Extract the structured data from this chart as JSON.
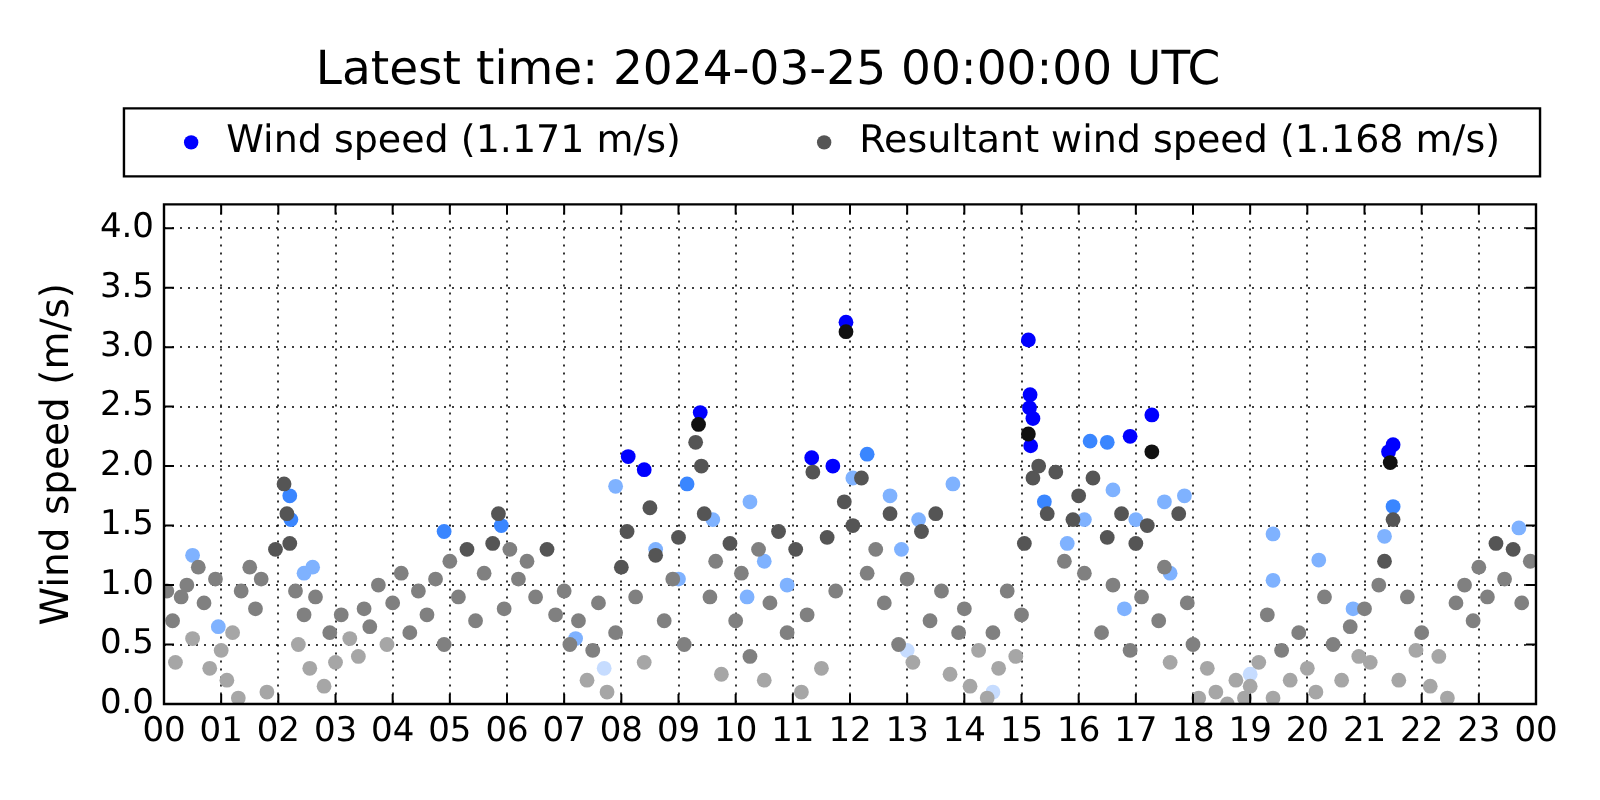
{
  "chart_data": {
    "type": "scatter",
    "title": "Latest time: 2024-03-25 00:00:00 UTC",
    "ylabel": "Wind speed (m/s)",
    "legend": "top",
    "grid": true,
    "marker": "circle",
    "xlim": [
      0,
      24
    ],
    "xticks": [
      {
        "value": 0,
        "label": "00"
      },
      {
        "value": 1,
        "label": "01"
      },
      {
        "value": 2,
        "label": "02"
      },
      {
        "value": 3,
        "label": "03"
      },
      {
        "value": 4,
        "label": "04"
      },
      {
        "value": 5,
        "label": "05"
      },
      {
        "value": 6,
        "label": "06"
      },
      {
        "value": 7,
        "label": "07"
      },
      {
        "value": 8,
        "label": "08"
      },
      {
        "value": 9,
        "label": "09"
      },
      10,
      11,
      12,
      13,
      14,
      15,
      16,
      17,
      18,
      19,
      20,
      21,
      22,
      23,
      {
        "value": 24,
        "label": "00"
      }
    ],
    "ylim": [
      0,
      4.2
    ],
    "yticks": [
      {
        "value": 0,
        "label": "0.0"
      },
      0.5,
      {
        "value": 1,
        "label": "1.0"
      },
      1.5,
      {
        "value": 2,
        "label": "2.0"
      },
      2.5,
      {
        "value": 3,
        "label": "3.0"
      },
      3.5,
      {
        "value": 4,
        "label": "4.0"
      }
    ],
    "series": [
      {
        "name": "Wind speed (1.171 m/s)",
        "color": "#0000ff",
        "x": [
          0.5,
          0.95,
          2.2,
          2.22,
          2.45,
          2.6,
          4.9,
          5.9,
          7.2,
          7.7,
          7.9,
          8.12,
          8.4,
          8.6,
          9.0,
          9.15,
          9.38,
          9.6,
          10.25,
          10.2,
          10.5,
          10.9,
          11.33,
          11.7,
          11.93,
          12.05,
          12.3,
          12.7,
          12.9,
          13.0,
          13.2,
          13.8,
          14.5,
          15.12,
          15.15,
          15.14,
          15.2,
          15.16,
          15.4,
          15.8,
          16.1,
          16.2,
          16.5,
          16.6,
          16.8,
          16.9,
          17.0,
          17.28,
          17.5,
          17.6,
          17.85,
          19.0,
          19.4,
          19.4,
          20.2,
          20.8,
          21.42,
          21.5,
          21.5,
          21.35,
          23.7
        ],
        "values": [
          1.25,
          0.65,
          1.75,
          1.55,
          1.1,
          1.15,
          1.45,
          1.5,
          0.55,
          0.3,
          1.83,
          2.08,
          1.97,
          1.3,
          1.05,
          1.85,
          2.45,
          1.55,
          1.7,
          0.9,
          1.2,
          1.0,
          2.07,
          2.0,
          3.21,
          1.9,
          2.1,
          1.75,
          1.3,
          0.45,
          1.55,
          1.85,
          0.1,
          3.06,
          2.6,
          2.49,
          2.4,
          2.17,
          1.7,
          1.35,
          1.55,
          2.21,
          2.2,
          1.8,
          0.8,
          2.25,
          1.55,
          2.43,
          1.7,
          1.1,
          1.75,
          0.25,
          1.43,
          1.04,
          1.21,
          0.8,
          2.12,
          2.18,
          1.66,
          1.41,
          1.48
        ],
        "colors": [
          "#7fb2ff",
          "#7fb2ff",
          "#3a86ff",
          "#3a86ff",
          "#7fb2ff",
          "#7fb2ff",
          "#3a86ff",
          "#3a86ff",
          "#7fb2ff",
          "#c6dcff",
          "#7fb2ff",
          "#0000ff",
          "#0000ff",
          "#7fb2ff",
          "#7fb2ff",
          "#3a86ff",
          "#0000ff",
          "#7fb2ff",
          "#7fb2ff",
          "#7fb2ff",
          "#7fb2ff",
          "#7fb2ff",
          "#0000ff",
          "#0000ff",
          "#0000ff",
          "#7fb2ff",
          "#3a86ff",
          "#7fb2ff",
          "#7fb2ff",
          "#c6dcff",
          "#7fb2ff",
          "#7fb2ff",
          "#c6dcff",
          "#0000ff",
          "#0000ff",
          "#0000ff",
          "#0000ff",
          "#0000ff",
          "#3a86ff",
          "#7fb2ff",
          "#7fb2ff",
          "#3a86ff",
          "#3a86ff",
          "#7fb2ff",
          "#7fb2ff",
          "#0000ff",
          "#7fb2ff",
          "#0000ff",
          "#7fb2ff",
          "#7fb2ff",
          "#7fb2ff",
          "#c6dcff",
          "#7fb2ff",
          "#7fb2ff",
          "#7fb2ff",
          "#7fb2ff",
          "#0000ff",
          "#0000ff",
          "#3a86ff",
          "#7fb2ff",
          "#7fb2ff"
        ]
      },
      {
        "name": "Resultant wind speed (1.168 m/s)",
        "color": "#555555",
        "x": [
          0.05,
          0.15,
          0.2,
          0.3,
          0.4,
          0.5,
          0.6,
          0.7,
          0.8,
          0.9,
          1.0,
          1.1,
          1.2,
          1.3,
          1.35,
          1.5,
          1.6,
          1.7,
          1.8,
          1.95,
          2.1,
          2.15,
          2.2,
          2.3,
          2.35,
          2.45,
          2.55,
          2.65,
          2.8,
          2.9,
          3.0,
          3.1,
          3.25,
          3.4,
          3.5,
          3.6,
          3.75,
          3.9,
          4.0,
          4.15,
          4.3,
          4.45,
          4.6,
          4.75,
          4.9,
          5.0,
          5.15,
          5.3,
          5.45,
          5.6,
          5.75,
          5.85,
          5.95,
          6.05,
          6.2,
          6.35,
          6.5,
          6.7,
          6.85,
          7.0,
          7.1,
          7.25,
          7.4,
          7.5,
          7.6,
          7.75,
          7.9,
          8.0,
          8.1,
          8.25,
          8.4,
          8.5,
          8.6,
          8.75,
          8.9,
          9.0,
          9.1,
          9.3,
          9.35,
          9.4,
          9.45,
          9.55,
          9.65,
          9.75,
          9.9,
          10.0,
          10.1,
          10.25,
          10.4,
          10.5,
          10.6,
          10.75,
          10.9,
          11.05,
          11.15,
          11.25,
          11.35,
          11.5,
          11.6,
          11.75,
          11.9,
          11.93,
          12.05,
          12.2,
          12.3,
          12.45,
          12.6,
          12.7,
          12.85,
          13.0,
          13.1,
          13.25,
          13.4,
          13.5,
          13.6,
          13.75,
          13.9,
          14.0,
          14.1,
          14.25,
          14.4,
          14.5,
          14.6,
          14.75,
          14.9,
          15.0,
          15.05,
          15.12,
          15.2,
          15.3,
          15.45,
          15.6,
          15.75,
          15.9,
          16.0,
          16.1,
          16.25,
          16.4,
          16.5,
          16.6,
          16.75,
          16.9,
          17.0,
          17.1,
          17.2,
          17.28,
          17.4,
          17.5,
          17.6,
          17.75,
          17.9,
          18.0,
          18.1,
          18.25,
          18.4,
          18.6,
          18.75,
          18.9,
          19.0,
          19.15,
          19.3,
          19.4,
          19.55,
          19.7,
          19.85,
          20.0,
          20.15,
          20.3,
          20.45,
          20.6,
          20.75,
          20.9,
          21.0,
          21.1,
          21.25,
          21.35,
          21.45,
          21.5,
          21.6,
          21.75,
          21.9,
          22.0,
          22.15,
          22.3,
          22.45,
          22.6,
          22.75,
          22.9,
          23.0,
          23.15,
          23.3,
          23.45,
          23.6,
          23.75,
          23.9
        ],
        "values": [
          0.95,
          0.7,
          0.35,
          0.9,
          1.0,
          0.55,
          1.15,
          0.85,
          0.3,
          1.05,
          0.45,
          0.2,
          0.6,
          0.05,
          0.95,
          1.15,
          0.8,
          1.05,
          0.1,
          1.3,
          1.85,
          1.6,
          1.35,
          0.95,
          0.5,
          0.75,
          0.3,
          0.9,
          0.15,
          0.6,
          0.35,
          0.75,
          0.55,
          0.4,
          0.8,
          0.65,
          1.0,
          0.5,
          0.85,
          1.1,
          0.6,
          0.95,
          0.75,
          1.05,
          0.5,
          1.2,
          0.9,
          1.3,
          0.7,
          1.1,
          1.35,
          1.6,
          0.8,
          1.3,
          1.05,
          1.2,
          0.9,
          1.3,
          0.75,
          0.95,
          0.5,
          0.7,
          0.2,
          0.45,
          0.85,
          0.1,
          0.6,
          1.15,
          1.45,
          0.9,
          0.35,
          1.65,
          1.25,
          0.7,
          1.05,
          1.4,
          0.5,
          2.2,
          2.35,
          2.0,
          1.6,
          0.9,
          1.2,
          0.25,
          1.35,
          0.7,
          1.1,
          0.4,
          1.3,
          0.2,
          0.85,
          1.45,
          0.6,
          1.3,
          0.1,
          0.75,
          1.95,
          0.3,
          1.4,
          0.95,
          1.7,
          3.13,
          1.5,
          1.9,
          1.1,
          1.3,
          0.85,
          1.6,
          0.5,
          1.05,
          0.35,
          1.45,
          0.7,
          1.6,
          0.95,
          0.25,
          0.6,
          0.8,
          0.15,
          0.45,
          0.05,
          0.6,
          0.3,
          0.95,
          0.4,
          0.75,
          1.35,
          2.27,
          1.9,
          2.0,
          1.6,
          1.95,
          1.2,
          1.55,
          1.75,
          1.1,
          1.9,
          0.6,
          1.4,
          1.0,
          1.6,
          0.45,
          1.35,
          0.9,
          1.5,
          2.12,
          0.7,
          1.15,
          0.35,
          1.6,
          0.85,
          0.5,
          0.05,
          0.3,
          0.1,
          0.0,
          0.2,
          0.05,
          0.15,
          0.35,
          0.75,
          0.05,
          0.45,
          0.2,
          0.6,
          0.3,
          0.1,
          0.9,
          0.5,
          0.2,
          0.65,
          0.4,
          0.8,
          0.35,
          1.0,
          1.2,
          2.03,
          1.55,
          0.2,
          0.9,
          0.45,
          0.6,
          0.15,
          0.4,
          0.05,
          0.85,
          1.0,
          0.7,
          1.15,
          0.9,
          1.35,
          1.05,
          1.3,
          0.85,
          1.2
        ],
        "colors": [
          "#808080",
          "#808080",
          "#a6a6a6",
          "#808080",
          "#808080",
          "#a6a6a6",
          "#808080",
          "#808080",
          "#a6a6a6",
          "#808080",
          "#a6a6a6",
          "#a6a6a6",
          "#a6a6a6",
          "#a6a6a6",
          "#808080",
          "#808080",
          "#808080",
          "#808080",
          "#a6a6a6",
          "#555555",
          "#555555",
          "#555555",
          "#555555",
          "#808080",
          "#a6a6a6",
          "#808080",
          "#a6a6a6",
          "#808080",
          "#a6a6a6",
          "#808080",
          "#a6a6a6",
          "#808080",
          "#a6a6a6",
          "#a6a6a6",
          "#808080",
          "#808080",
          "#808080",
          "#a6a6a6",
          "#808080",
          "#808080",
          "#808080",
          "#808080",
          "#808080",
          "#808080",
          "#808080",
          "#808080",
          "#808080",
          "#555555",
          "#808080",
          "#808080",
          "#555555",
          "#555555",
          "#808080",
          "#808080",
          "#808080",
          "#808080",
          "#808080",
          "#555555",
          "#808080",
          "#808080",
          "#808080",
          "#808080",
          "#a6a6a6",
          "#808080",
          "#808080",
          "#a6a6a6",
          "#808080",
          "#555555",
          "#555555",
          "#808080",
          "#a6a6a6",
          "#555555",
          "#555555",
          "#808080",
          "#808080",
          "#555555",
          "#808080",
          "#555555",
          "#111111",
          "#555555",
          "#555555",
          "#808080",
          "#808080",
          "#a6a6a6",
          "#555555",
          "#808080",
          "#808080",
          "#808080",
          "#808080",
          "#a6a6a6",
          "#808080",
          "#555555",
          "#808080",
          "#555555",
          "#a6a6a6",
          "#808080",
          "#555555",
          "#a6a6a6",
          "#555555",
          "#808080",
          "#555555",
          "#111111",
          "#555555",
          "#555555",
          "#808080",
          "#808080",
          "#808080",
          "#555555",
          "#808080",
          "#808080",
          "#a6a6a6",
          "#555555",
          "#808080",
          "#555555",
          "#808080",
          "#a6a6a6",
          "#808080",
          "#808080",
          "#a6a6a6",
          "#a6a6a6",
          "#a6a6a6",
          "#808080",
          "#a6a6a6",
          "#808080",
          "#a6a6a6",
          "#808080",
          "#555555",
          "#111111",
          "#555555",
          "#555555",
          "#555555",
          "#555555",
          "#808080",
          "#555555",
          "#555555",
          "#808080",
          "#555555",
          "#808080",
          "#555555",
          "#808080",
          "#555555",
          "#808080",
          "#555555",
          "#808080",
          "#555555",
          "#111111",
          "#808080",
          "#808080",
          "#a6a6a6",
          "#555555",
          "#808080",
          "#808080",
          "#a6a6a6",
          "#a6a6a6",
          "#a6a6a6",
          "#a6a6a6",
          "#a6a6a6",
          "#a6a6a6",
          "#a6a6a6",
          "#a6a6a6",
          "#808080",
          "#a6a6a6",
          "#808080",
          "#a6a6a6",
          "#808080",
          "#a6a6a6",
          "#a6a6a6",
          "#808080",
          "#808080",
          "#a6a6a6",
          "#808080",
          "#a6a6a6",
          "#808080",
          "#a6a6a6",
          "#808080",
          "#555555",
          "#111111",
          "#555555",
          "#a6a6a6",
          "#808080",
          "#a6a6a6",
          "#808080",
          "#a6a6a6",
          "#a6a6a6",
          "#a6a6a6",
          "#808080",
          "#808080",
          "#808080",
          "#808080",
          "#808080",
          "#555555",
          "#808080",
          "#555555",
          "#808080",
          "#808080"
        ]
      }
    ]
  }
}
